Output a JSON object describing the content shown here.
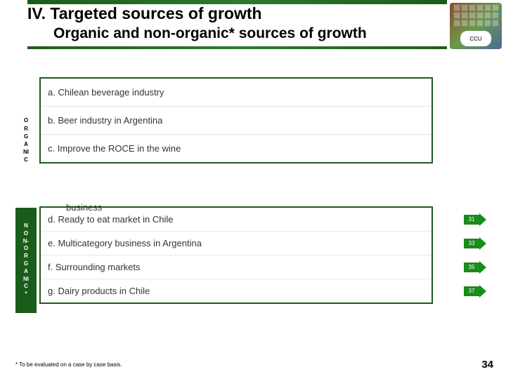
{
  "header": {
    "title": "IV. Targeted sources of growth",
    "subtitle": "Organic and non-organic* sources of growth",
    "logo_text": "CCU"
  },
  "organic": {
    "label_lines": [
      "O",
      "R",
      "G",
      "A",
      "NI",
      "C"
    ],
    "items": [
      "a. Chilean beverage industry",
      "b. Beer industry in Argentina",
      "c. Improve the ROCE in the wine"
    ],
    "overflow": "business"
  },
  "nonorganic": {
    "label_lines": [
      "N",
      "O",
      "N-",
      "O",
      "R",
      "G",
      "A",
      "NI",
      "C",
      "*"
    ],
    "items": [
      {
        "text": "d. Ready to eat market in Chile",
        "arrow": "31"
      },
      {
        "text": "e. Multicategory business in Argentina",
        "arrow": "33"
      },
      {
        "text": "f. Surrounding markets",
        "arrow": "35"
      },
      {
        "text": "g. Dairy products in Chile",
        "arrow": "37"
      }
    ]
  },
  "footnote": "* To be evaluated on a case by case basis.",
  "page_number": "34",
  "colors": {
    "brand_green": "#1a5c1a",
    "arrow_green": "#1a8c1a",
    "background": "#ffffff",
    "text": "#000000"
  }
}
